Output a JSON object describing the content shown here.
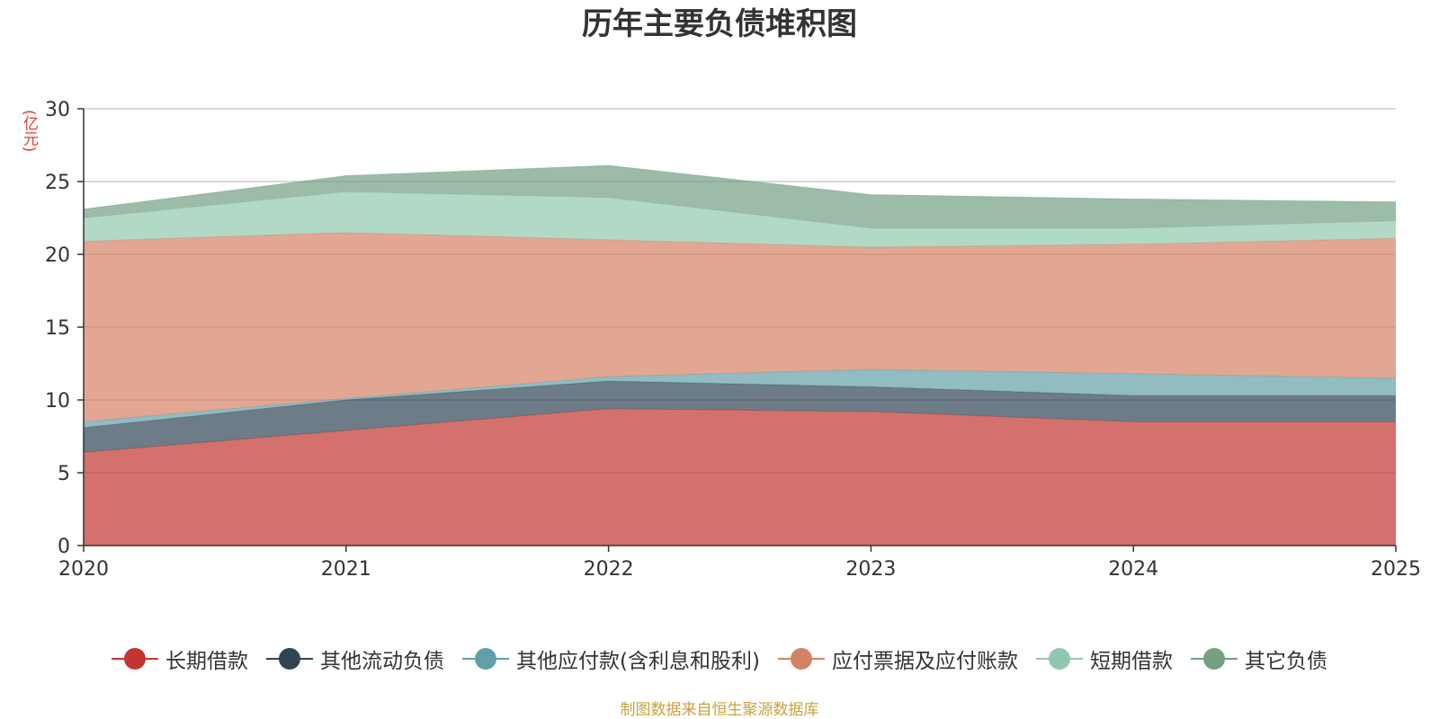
{
  "chart_data": {
    "type": "area",
    "stacked": true,
    "title": "历年主要负债堆积图",
    "ylabel": "(亿元)",
    "xlabel": "",
    "x": [
      "2020",
      "2021",
      "2022",
      "2023",
      "2024",
      "2025"
    ],
    "ylim": [
      0,
      30
    ],
    "yticks": [
      "0",
      "5",
      "10",
      "15",
      "20",
      "25",
      "30"
    ],
    "grid": true,
    "legend_position": "bottom",
    "series": [
      {
        "name": "长期借款",
        "color": "#c23531",
        "values": [
          6.4,
          7.9,
          9.4,
          9.2,
          8.5,
          8.5
        ]
      },
      {
        "name": "其他流动负债",
        "color": "#2f4554",
        "values": [
          1.7,
          2.1,
          1.9,
          1.7,
          1.8,
          1.8
        ]
      },
      {
        "name": "其他应付款(含利息和股利)",
        "color": "#61a0a8",
        "values": [
          0.4,
          0.1,
          0.3,
          1.2,
          1.5,
          1.2
        ]
      },
      {
        "name": "应付票据及应付账款",
        "color": "#d48265",
        "values": [
          12.4,
          11.4,
          9.4,
          8.4,
          8.9,
          9.6
        ]
      },
      {
        "name": "短期借款",
        "color": "#91c7ae",
        "values": [
          1.6,
          2.8,
          2.9,
          1.3,
          1.1,
          1.2
        ]
      },
      {
        "name": "其它负债",
        "color": "#749f83",
        "values": [
          0.6,
          1.1,
          2.2,
          2.3,
          2.0,
          1.3
        ]
      }
    ],
    "source": "制图数据来自恒生聚源数据库"
  }
}
